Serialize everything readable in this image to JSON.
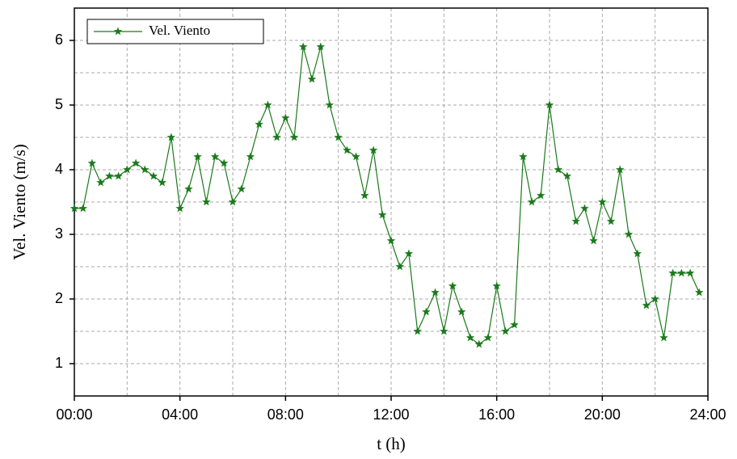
{
  "chart_data": {
    "type": "line",
    "xlabel": "t (h)",
    "ylabel": "Vel. Viento (m/s)",
    "x": [
      0,
      0.33,
      0.67,
      1,
      1.33,
      1.67,
      2,
      2.33,
      2.67,
      3,
      3.33,
      3.67,
      4,
      4.33,
      4.67,
      5,
      5.33,
      5.67,
      6,
      6.33,
      6.67,
      7,
      7.33,
      7.67,
      8,
      8.33,
      8.67,
      9,
      9.33,
      9.67,
      10,
      10.33,
      10.67,
      11,
      11.33,
      11.67,
      12,
      12.33,
      12.67,
      13,
      13.33,
      13.67,
      14,
      14.33,
      14.67,
      15,
      15.33,
      15.67,
      16,
      16.33,
      16.67,
      17,
      17.33,
      17.67,
      18,
      18.33,
      18.67,
      19,
      19.33,
      19.67,
      20,
      20.33,
      20.67,
      21,
      21.33,
      21.67,
      22,
      22.33,
      22.67,
      23,
      23.33,
      23.67
    ],
    "series": [
      {
        "name": "Vel. Viento",
        "color": "#1a7a1a",
        "values": [
          3.4,
          3.4,
          4.1,
          3.8,
          3.9,
          3.9,
          4.0,
          4.1,
          4.0,
          3.9,
          3.8,
          4.5,
          3.4,
          3.7,
          4.2,
          3.5,
          4.2,
          4.1,
          3.5,
          3.7,
          4.2,
          4.7,
          5.0,
          4.5,
          4.8,
          4.5,
          5.9,
          5.4,
          5.9,
          5.0,
          4.5,
          4.3,
          4.2,
          3.6,
          4.3,
          3.3,
          2.9,
          2.5,
          2.7,
          1.5,
          1.8,
          2.1,
          1.5,
          2.2,
          1.8,
          1.4,
          1.3,
          1.4,
          2.2,
          1.5,
          1.6,
          4.2,
          3.5,
          3.6,
          5.0,
          4.0,
          3.9,
          3.2,
          3.4,
          2.9,
          3.5,
          3.2,
          4.0,
          3.0,
          2.7,
          1.9,
          2.0,
          1.4,
          2.4,
          2.4,
          2.4,
          2.1
        ]
      }
    ],
    "xlim": [
      0,
      24
    ],
    "xticks": [
      {
        "value": 0,
        "label": "00:00"
      },
      {
        "value": 4,
        "label": "04:00"
      },
      {
        "value": 8,
        "label": "08:00"
      },
      {
        "value": 12,
        "label": "12:00"
      },
      {
        "value": 16,
        "label": "16:00"
      },
      {
        "value": 20,
        "label": "20:00"
      },
      {
        "value": 24,
        "label": "24:00"
      }
    ],
    "xgrid": [
      2,
      4,
      6,
      8,
      10,
      12,
      14,
      16,
      18,
      20,
      22
    ],
    "ylim": [
      0.5,
      6.5
    ],
    "yticks": [
      1,
      2,
      3,
      4,
      5,
      6
    ],
    "ygrid": [
      1,
      1.5,
      2,
      2.5,
      3,
      3.5,
      4,
      4.5,
      5,
      5.5,
      6
    ],
    "grid": true,
    "legend": "upper left",
    "marker": "star"
  }
}
